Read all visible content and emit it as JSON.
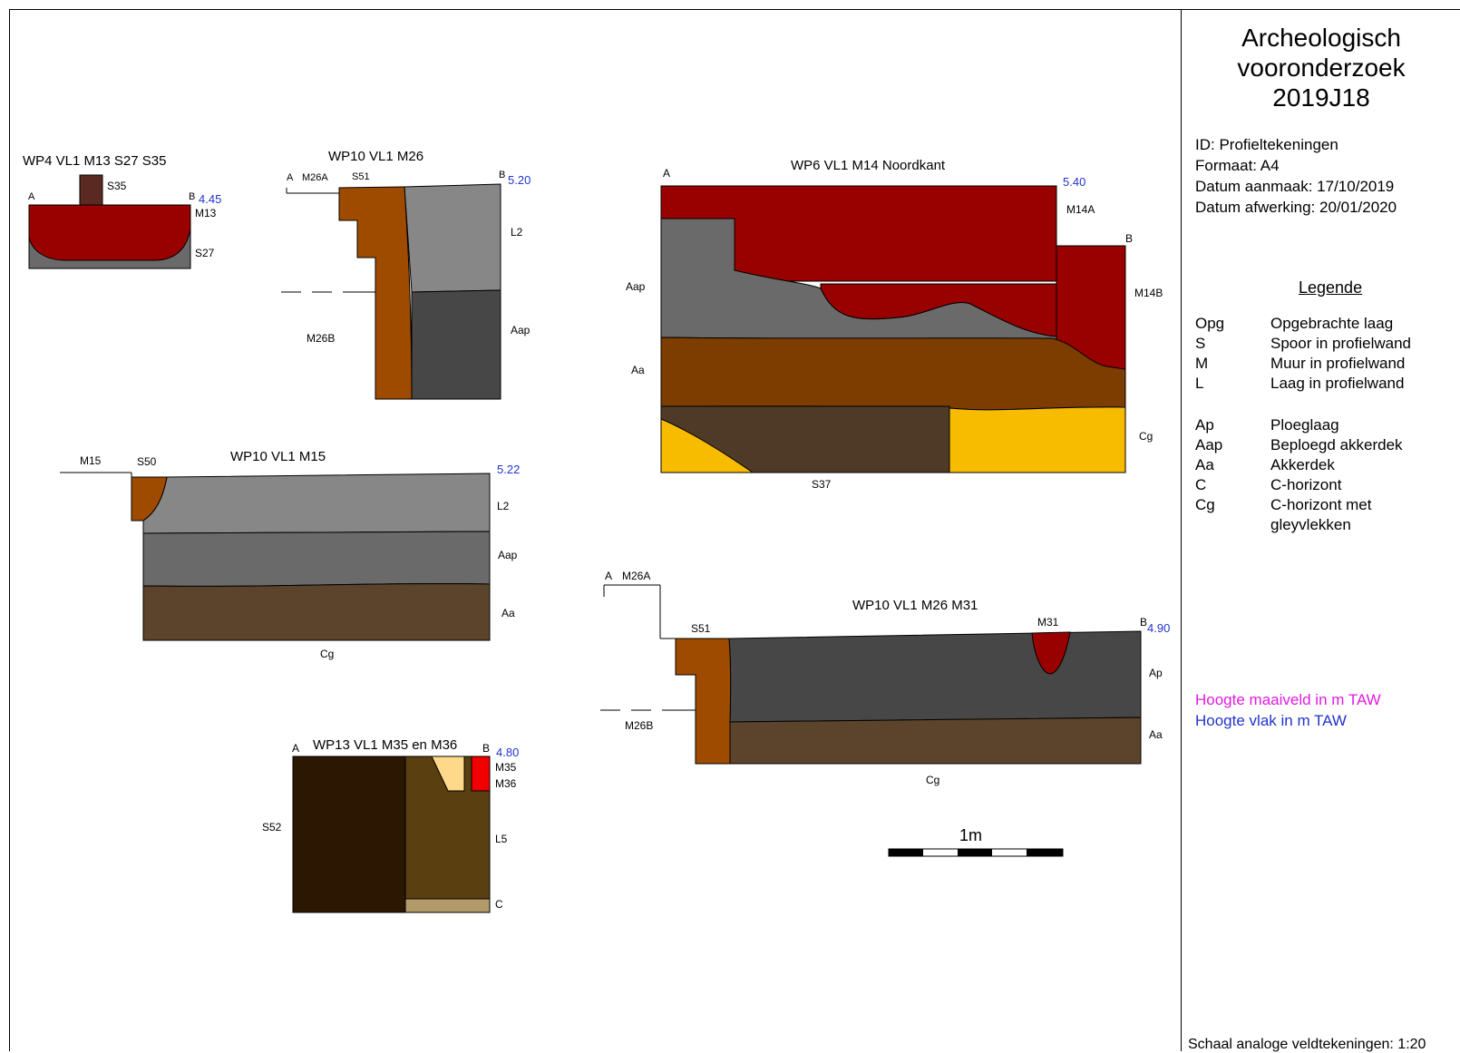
{
  "header": {
    "title_lines": [
      "Archeologisch",
      "vooronderzoek",
      "2019J18"
    ]
  },
  "meta": {
    "id": "ID: Profieltekeningen",
    "format": "Formaat: A4",
    "created": "Datum aanmaak: 17/10/2019",
    "finished": "Datum afwerking: 20/01/2020"
  },
  "legend": {
    "title": "Legende",
    "group1": [
      {
        "code": "Opg",
        "desc": "Opgebrachte laag"
      },
      {
        "code": "S",
        "desc": "Spoor in profielwand"
      },
      {
        "code": "M",
        "desc": "Muur in profielwand"
      },
      {
        "code": "L",
        "desc": "Laag in profielwand"
      }
    ],
    "group2": [
      {
        "code": "Ap",
        "desc": "Ploeglaag"
      },
      {
        "code": "Aap",
        "desc": "Beploegd akkerdek"
      },
      {
        "code": "Aa",
        "desc": "Akkerdek"
      },
      {
        "code": "C",
        "desc": "C-horizont"
      },
      {
        "code": "Cg",
        "desc": "C-horizont met gleyvlekken"
      }
    ]
  },
  "hoogte": {
    "maaiveld": "Hoogte maaiveld in m TAW",
    "vlak": "Hoogte vlak in m TAW",
    "maaiveld_color": "#e01be0",
    "vlak_color": "#2233cc"
  },
  "scale_note": "Schaal analoge veldtekeningen: 1:20",
  "scale_bar_label": "1m",
  "colors": {
    "dark_red": "#990000",
    "grey": "#6a6a6a",
    "light_grey": "#878787",
    "dark_grey": "#474747",
    "brown": "#7d3c00",
    "orange_brown": "#9e4b00",
    "soil_brown": "#5c442c",
    "dark_soil": "#4f3a27",
    "yellow": "#f7bb00",
    "very_dark": "#2b1702",
    "olive": "#5a4010",
    "tan": "#b39a6a",
    "pale": "#ffd98a",
    "red": "#f20000"
  },
  "profiles": [
    {
      "title": "WP4 VL1 M13 S27 S35",
      "labels": [
        "A",
        "B",
        "S35",
        "M13",
        "S27"
      ],
      "height": "4.45"
    },
    {
      "title": "WP10 VL1 M26",
      "labels": [
        "A",
        "M26A",
        "S51",
        "B",
        "L2",
        "Aap",
        "M26B"
      ],
      "height": "5.20"
    },
    {
      "title": "WP6 VL1 M14 Noordkant",
      "labels": [
        "A",
        "B",
        "M14A",
        "M14B",
        "Aap",
        "Aa",
        "Cg",
        "S37"
      ],
      "height": "5.40"
    },
    {
      "title": "WP10 VL1 M15",
      "labels": [
        "M15",
        "S50",
        "L2",
        "Aap",
        "Aa",
        "Cg"
      ],
      "height": "5.22"
    },
    {
      "title": "WP10 VL1 M26 M31",
      "labels": [
        "A",
        "M26A",
        "S51",
        "M31",
        "B",
        "Ap",
        "Aa",
        "Cg",
        "M26B"
      ],
      "height": "4.90"
    },
    {
      "title": "WP13 VL1 M35 en M36",
      "labels": [
        "A",
        "B",
        "M35",
        "M36",
        "S52",
        "L5",
        "C"
      ],
      "height": "4.80"
    }
  ]
}
